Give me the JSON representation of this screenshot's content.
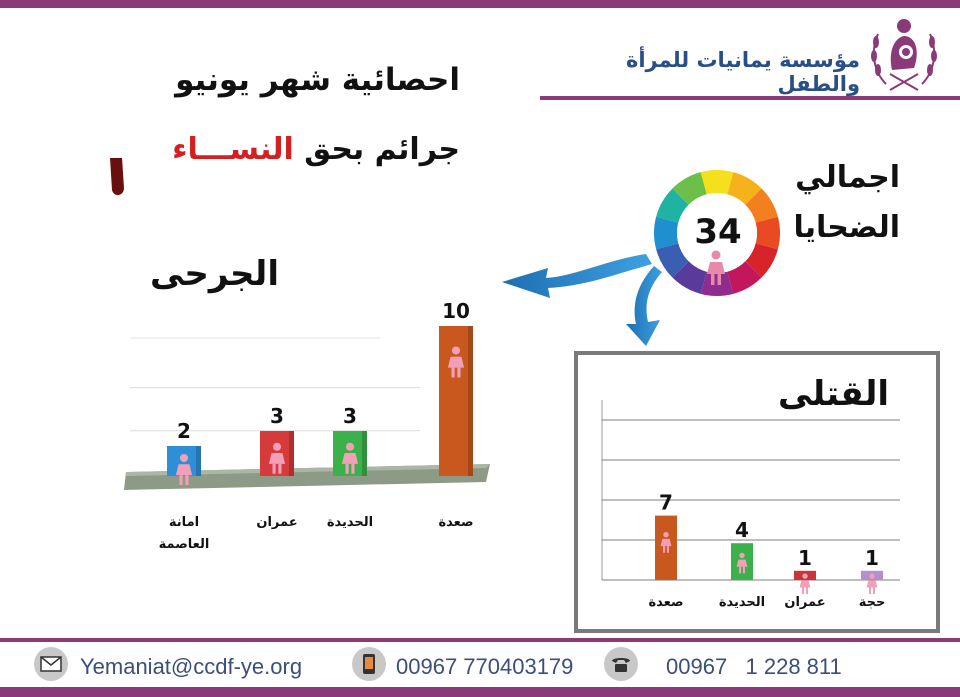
{
  "header": {
    "org_name": "مؤسسة  يمانيات للمرأة والطفل",
    "title": "احصائية شهر يونيو",
    "subtitle_prefix": "جرائم  بحق ",
    "subtitle_highlight": "النســـاء"
  },
  "total": {
    "value": "34",
    "label_line1": "اجمالي",
    "label_line2": "الضحايا"
  },
  "chart_data": [
    {
      "type": "bar",
      "title": "الجرحى",
      "categories": [
        "امانة العاصمة",
        "عمران",
        "الحديدة",
        "صعدة"
      ],
      "values": [
        2,
        3,
        3,
        10
      ],
      "value_labels": [
        "2",
        "3",
        "3",
        "10"
      ],
      "colors": [
        "#2f8fd6",
        "#d63a3a",
        "#3cb04a",
        "#c9581f"
      ],
      "ylim": [
        0,
        10
      ]
    },
    {
      "type": "bar",
      "title": "القتلى",
      "categories": [
        "صعدة",
        "الحديدة",
        "عمران",
        "حجة"
      ],
      "values": [
        7,
        4,
        1,
        1
      ],
      "value_labels": [
        "7",
        "4",
        "1",
        "1"
      ],
      "colors": [
        "#c9581f",
        "#3cb04a",
        "#c8343a",
        "#b38fd0"
      ],
      "ylim": [
        0,
        10
      ]
    }
  ],
  "footer": {
    "email": "Yemaniat@ccdf-ye.org",
    "mobile": "00967 770403179",
    "phone": "00967   1 228 811"
  },
  "icons": {
    "logo": "mother-child-laurel-logo",
    "email": "envelope-icon",
    "mobile": "mobile-phone-icon",
    "phone": "telephone-icon",
    "woman": "woman-icon",
    "arrow": "curved-arrow-icon"
  },
  "colors": {
    "band": "#8a3a78",
    "org_text": "#2a4f86",
    "highlight": "#d42020",
    "footer_text": "#3b4f7a"
  }
}
